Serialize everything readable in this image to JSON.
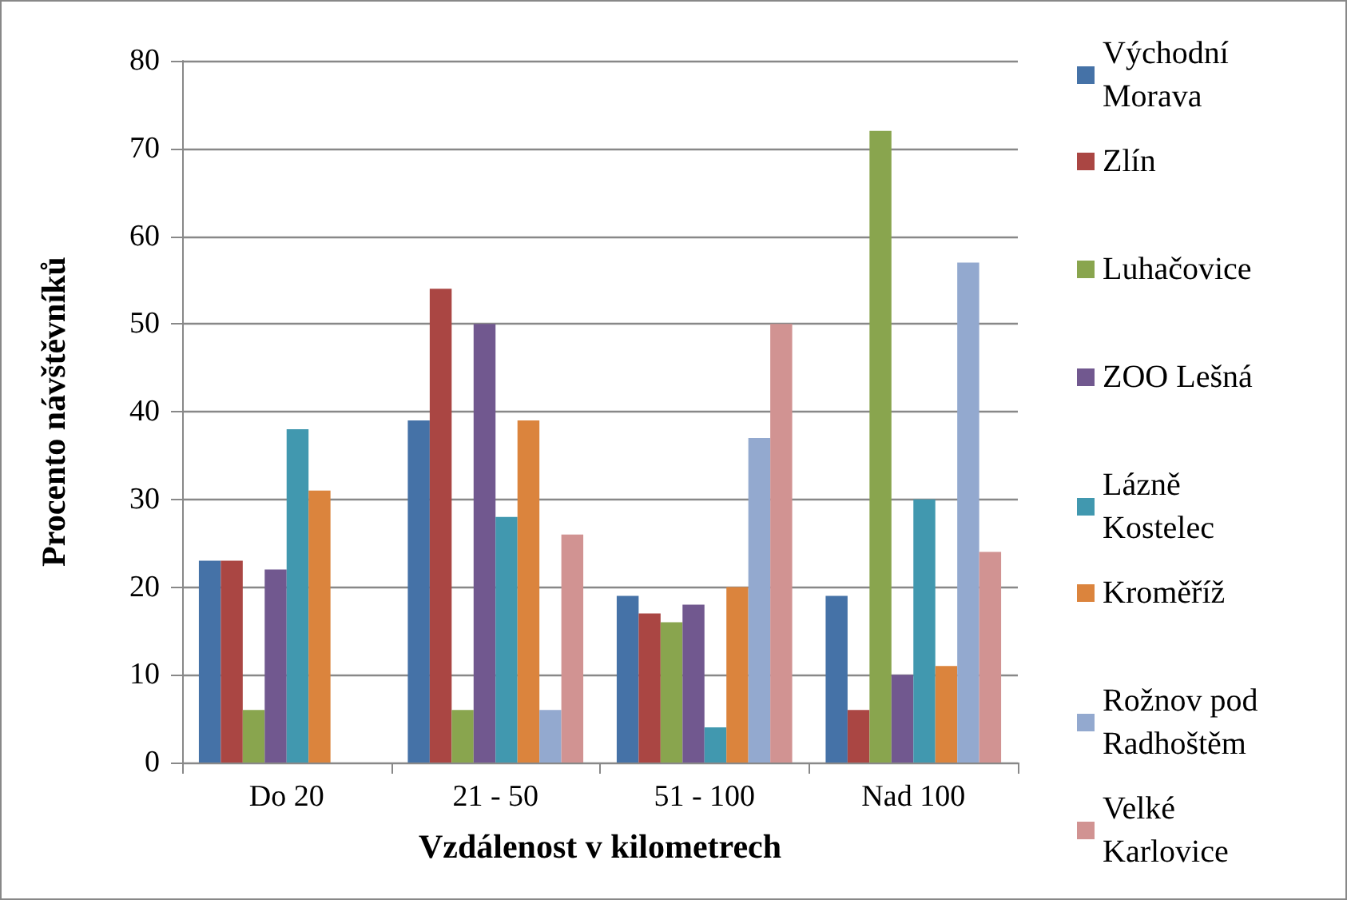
{
  "chart_data": {
    "type": "bar",
    "xlabel": "Vzdálenost v kilometrech",
    "ylabel": "Procento návštěvníků",
    "categories": [
      "Do 20",
      "21 - 50",
      "51 - 100",
      "Nad 100"
    ],
    "series": [
      {
        "name": "Východní Morava",
        "color": "#4572a7",
        "values": [
          23,
          39,
          19,
          19
        ]
      },
      {
        "name": "Zlín",
        "color": "#aa4643",
        "values": [
          23,
          54,
          17,
          6
        ]
      },
      {
        "name": "Luhačovice",
        "color": "#89a54e",
        "values": [
          6,
          6,
          16,
          72
        ]
      },
      {
        "name": "ZOO Lešná",
        "color": "#71588f",
        "values": [
          22,
          50,
          18,
          10
        ]
      },
      {
        "name": "Lázně Kostelec",
        "color": "#4198af",
        "values": [
          38,
          28,
          4,
          30
        ]
      },
      {
        "name": "Kroměříž",
        "color": "#db843d",
        "values": [
          31,
          39,
          20,
          11
        ]
      },
      {
        "name": "Rožnov pod Radhoštěm",
        "color": "#93a9cf",
        "values": [
          null,
          6,
          37,
          57
        ]
      },
      {
        "name": "Velké Karlovice",
        "color": "#d19392",
        "values": [
          null,
          26,
          50,
          24
        ]
      }
    ],
    "ylim": [
      0,
      80
    ],
    "yticks": [
      0,
      10,
      20,
      30,
      40,
      50,
      60,
      70,
      80
    ],
    "grid": "y",
    "legend": "right"
  }
}
